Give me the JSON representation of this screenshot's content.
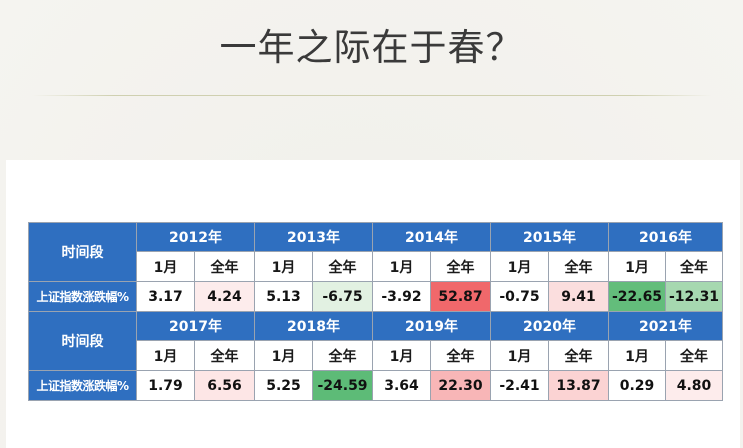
{
  "title": "一年之际在于春？",
  "table": {
    "period_label": "时间段",
    "metric_label": "上证指数涨跌幅%",
    "month_label": "1月",
    "year_label": "全年",
    "blocks": [
      {
        "years": [
          {
            "year": "2012年",
            "jan": "3.17",
            "full": "4.24",
            "jan_bg": "#ffffff",
            "full_bg": "#fdecec"
          },
          {
            "year": "2013年",
            "jan": "5.13",
            "full": "-6.75",
            "jan_bg": "#ffffff",
            "full_bg": "#e2f1e2"
          },
          {
            "year": "2014年",
            "jan": "-3.92",
            "full": "52.87",
            "jan_bg": "#ffffff",
            "full_bg": "#f0686b"
          },
          {
            "year": "2015年",
            "jan": "-0.75",
            "full": "9.41",
            "jan_bg": "#ffffff",
            "full_bg": "#fbdede"
          },
          {
            "year": "2016年",
            "jan": "-22.65",
            "full": "-12.31",
            "jan_bg": "#63bd7b",
            "full_bg": "#a6d8b0"
          }
        ]
      },
      {
        "years": [
          {
            "year": "2017年",
            "jan": "1.79",
            "full": "6.56",
            "jan_bg": "#ffffff",
            "full_bg": "#fde6e6"
          },
          {
            "year": "2018年",
            "jan": "5.25",
            "full": "-24.59",
            "jan_bg": "#ffffff",
            "full_bg": "#5dbb77"
          },
          {
            "year": "2019年",
            "jan": "3.64",
            "full": "22.30",
            "jan_bg": "#ffffff",
            "full_bg": "#f8b6b7"
          },
          {
            "year": "2020年",
            "jan": "-2.41",
            "full": "13.87",
            "jan_bg": "#ffffff",
            "full_bg": "#fbd3d3"
          },
          {
            "year": "2021年",
            "jan": "0.29",
            "full": "4.80",
            "jan_bg": "#ffffff",
            "full_bg": "#fdecec"
          }
        ]
      }
    ],
    "colors": {
      "header_blue": "#2f6fc0",
      "grid_border": "#9aa3b0"
    }
  }
}
